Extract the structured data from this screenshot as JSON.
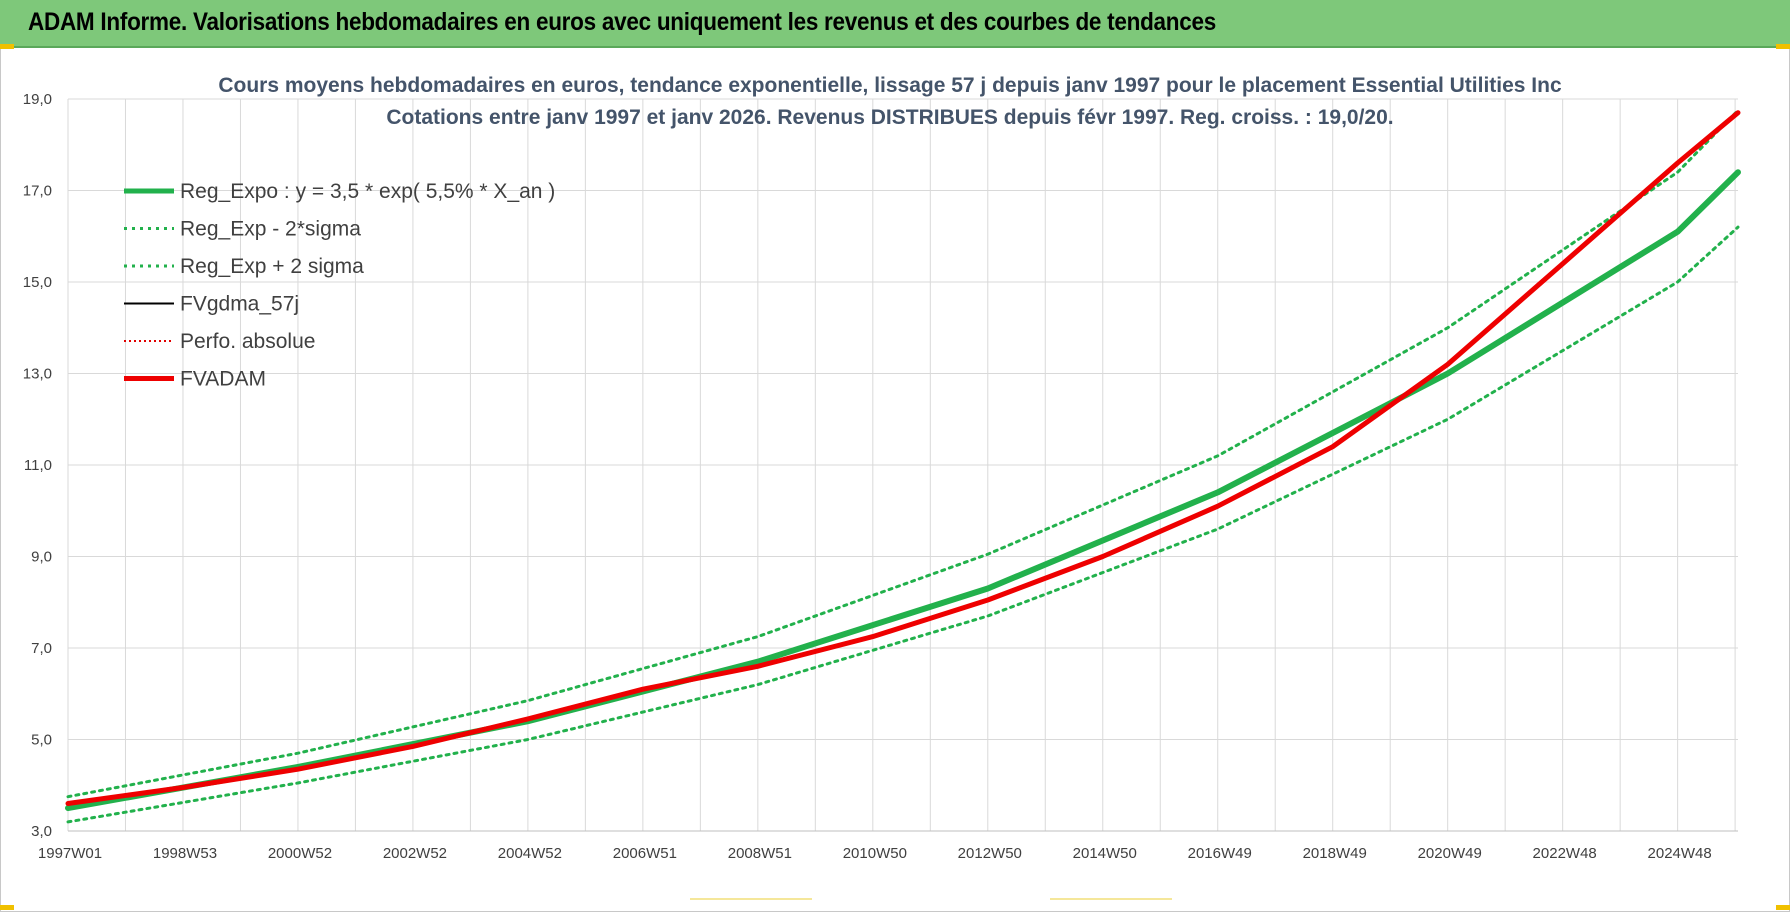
{
  "header": {
    "title": "ADAM Informe. Valorisations hebdomadaires en euros avec uniquement les revenus et des courbes de tendances",
    "background": "#7ec87a"
  },
  "chart_data": {
    "type": "line",
    "title": "Cours moyens hebdomadaires en euros, tendance exponentielle, lissage 57 j depuis janv 1997 pour le placement Essential Utilities Inc",
    "subtitle": "Cotations entre janv 1997 et janv 2026. Revenus DISTRIBUES depuis févr 1997. Reg. croiss. : 19,0/20.",
    "xlabel": "",
    "ylabel": "",
    "ylim": [
      3.0,
      19.0
    ],
    "xlim": [
      1997.0,
      2026.05
    ],
    "y_ticks": [
      "3,0",
      "5,0",
      "7,0",
      "9,0",
      "11,0",
      "13,0",
      "15,0",
      "17,0",
      "19,0"
    ],
    "y_tick_values": [
      3,
      5,
      7,
      9,
      11,
      13,
      15,
      17,
      19
    ],
    "x_tick_labels": [
      "1997W01",
      "1998W53",
      "2000W52",
      "2002W52",
      "2004W52",
      "2006W51",
      "2008W51",
      "2010W50",
      "2012W50",
      "2014W50",
      "2016W49",
      "2018W49",
      "2020W49",
      "2022W48",
      "2024W48"
    ],
    "x_tick_values": [
      1997.0,
      1999.0,
      2001.0,
      2003.0,
      2005.0,
      2007.0,
      2009.0,
      2011.0,
      2013.0,
      2015.0,
      2017.0,
      2019.0,
      2021.0,
      2023.0,
      2025.0
    ],
    "grid": true,
    "legend_position": "top-left",
    "series": [
      {
        "name": "Reg_Expo : y = 3,5 * exp( 5,5% *  X_an )",
        "color": "#22b14c",
        "style": "solid",
        "x": [
          1997.0,
          2001.0,
          2005.0,
          2009.0,
          2013.0,
          2017.0,
          2021.0,
          2025.0,
          2026.05
        ],
        "values": [
          3.5,
          4.4,
          5.4,
          6.7,
          8.3,
          10.4,
          13.0,
          16.1,
          17.4
        ]
      },
      {
        "name": "Reg_Exp - 2*sigma",
        "color": "#22b14c",
        "style": "dotted",
        "x": [
          1997.0,
          2001.0,
          2005.0,
          2009.0,
          2013.0,
          2017.0,
          2021.0,
          2025.0,
          2026.05
        ],
        "values": [
          3.2,
          4.05,
          5.0,
          6.2,
          7.7,
          9.6,
          12.0,
          15.0,
          16.2
        ]
      },
      {
        "name": "Reg_Exp + 2 sigma",
        "color": "#22b14c",
        "style": "dotted",
        "x": [
          1997.0,
          2001.0,
          2005.0,
          2009.0,
          2013.0,
          2017.0,
          2021.0,
          2025.0,
          2026.05
        ],
        "values": [
          3.75,
          4.7,
          5.85,
          7.25,
          9.05,
          11.2,
          14.0,
          17.4,
          18.75
        ]
      },
      {
        "name": "FVgdma_57j",
        "color": "#000000",
        "style": "solid",
        "x": [
          1997.0,
          1999.0,
          2001.0,
          2003.0,
          2005.0,
          2007.0,
          2009.0,
          2011.0,
          2013.0,
          2015.0,
          2017.0,
          2019.0,
          2021.0,
          2023.0,
          2025.0,
          2026.05
        ],
        "values": [
          3.6,
          3.95,
          4.35,
          4.85,
          5.45,
          6.1,
          6.6,
          7.25,
          8.05,
          9.0,
          10.1,
          11.4,
          13.2,
          15.4,
          17.6,
          18.7
        ]
      },
      {
        "name": "Perfo. absolue",
        "color": "#e00000",
        "style": "dotted",
        "x": [
          1997.0,
          1999.0,
          2001.0,
          2003.0,
          2005.0,
          2007.0,
          2009.0,
          2011.0,
          2013.0,
          2015.0,
          2017.0,
          2019.0,
          2021.0,
          2023.0,
          2025.0,
          2026.05
        ],
        "values": [
          3.6,
          3.95,
          4.35,
          4.85,
          5.45,
          6.1,
          6.6,
          7.25,
          8.05,
          9.0,
          10.1,
          11.4,
          13.2,
          15.4,
          17.6,
          18.7
        ]
      },
      {
        "name": "FVADAM",
        "color": "#ee0000",
        "style": "solid",
        "x": [
          1997.0,
          1999.0,
          2001.0,
          2003.0,
          2005.0,
          2007.0,
          2009.0,
          2011.0,
          2013.0,
          2015.0,
          2017.0,
          2019.0,
          2021.0,
          2023.0,
          2025.0,
          2026.05
        ],
        "values": [
          3.6,
          3.95,
          4.35,
          4.85,
          5.45,
          6.1,
          6.6,
          7.25,
          8.05,
          9.0,
          10.1,
          11.4,
          13.2,
          15.4,
          17.6,
          18.7
        ]
      }
    ]
  }
}
